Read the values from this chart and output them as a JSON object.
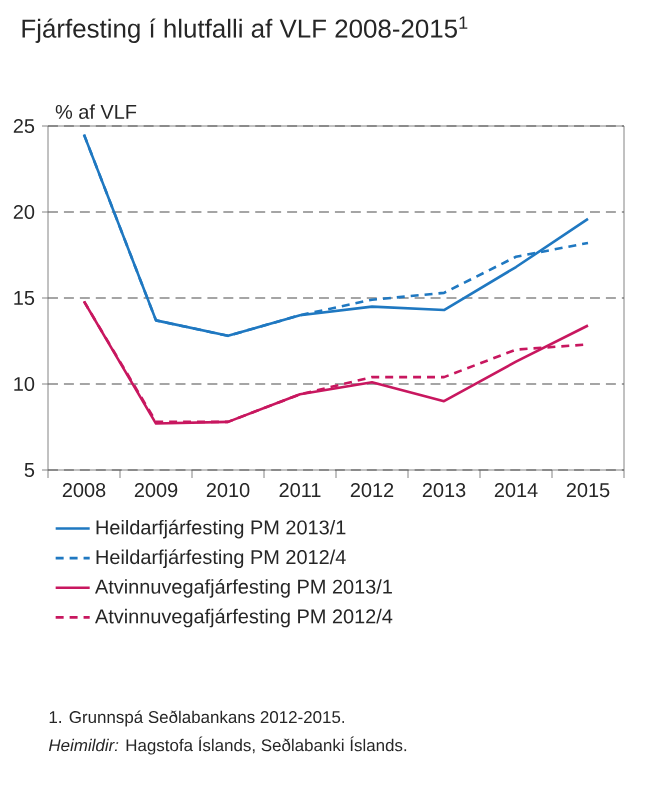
{
  "chart_data": {
    "type": "line",
    "title": "Fjárfesting í hlutfalli af VLF 2008-2015$^{1}$",
    "ylabel": "% af VLF",
    "categories": [
      "2008",
      "2009",
      "2010",
      "2011",
      "2012",
      "2013",
      "2014",
      "2015"
    ],
    "series": [
      {
        "name": "Heildarfjárfesting PM 2013/1",
        "color": "#1f78c1",
        "line_style": "solid",
        "values": [
          24.5,
          13.7,
          12.8,
          14.0,
          14.5,
          14.3,
          16.8,
          19.6
        ]
      },
      {
        "name": "Heildarfjárfesting PM 2012/4",
        "color": "#1f78c1",
        "line_style": "dashed",
        "values": [
          24.5,
          13.7,
          12.8,
          14.0,
          14.9,
          15.3,
          17.4,
          18.2
        ]
      },
      {
        "name": "Atvinnuvegafjárfesting PM 2013/1",
        "color": "#c8175f",
        "line_style": "solid",
        "values": [
          14.8,
          7.7,
          7.8,
          9.4,
          10.1,
          9.0,
          11.3,
          13.4
        ]
      },
      {
        "name": "Atvinnuvegafjárfesting PM 2012/4",
        "color": "#c8175f",
        "line_style": "dashed",
        "values": [
          14.8,
          7.8,
          7.8,
          9.4,
          10.4,
          10.4,
          12.0,
          12.3
        ]
      }
    ],
    "ylim": [
      5,
      25
    ],
    "yticks": [
      5,
      10,
      15,
      20,
      25
    ],
    "grid": "y",
    "legend": "bottom",
    "marker": "none",
    "annotations": [
      "1. Grunnspá Seðlabankans 2012-2015.",
      "*Heimildir:* Hagstofa Íslands, Seðlabanki Íslands."
    ]
  }
}
